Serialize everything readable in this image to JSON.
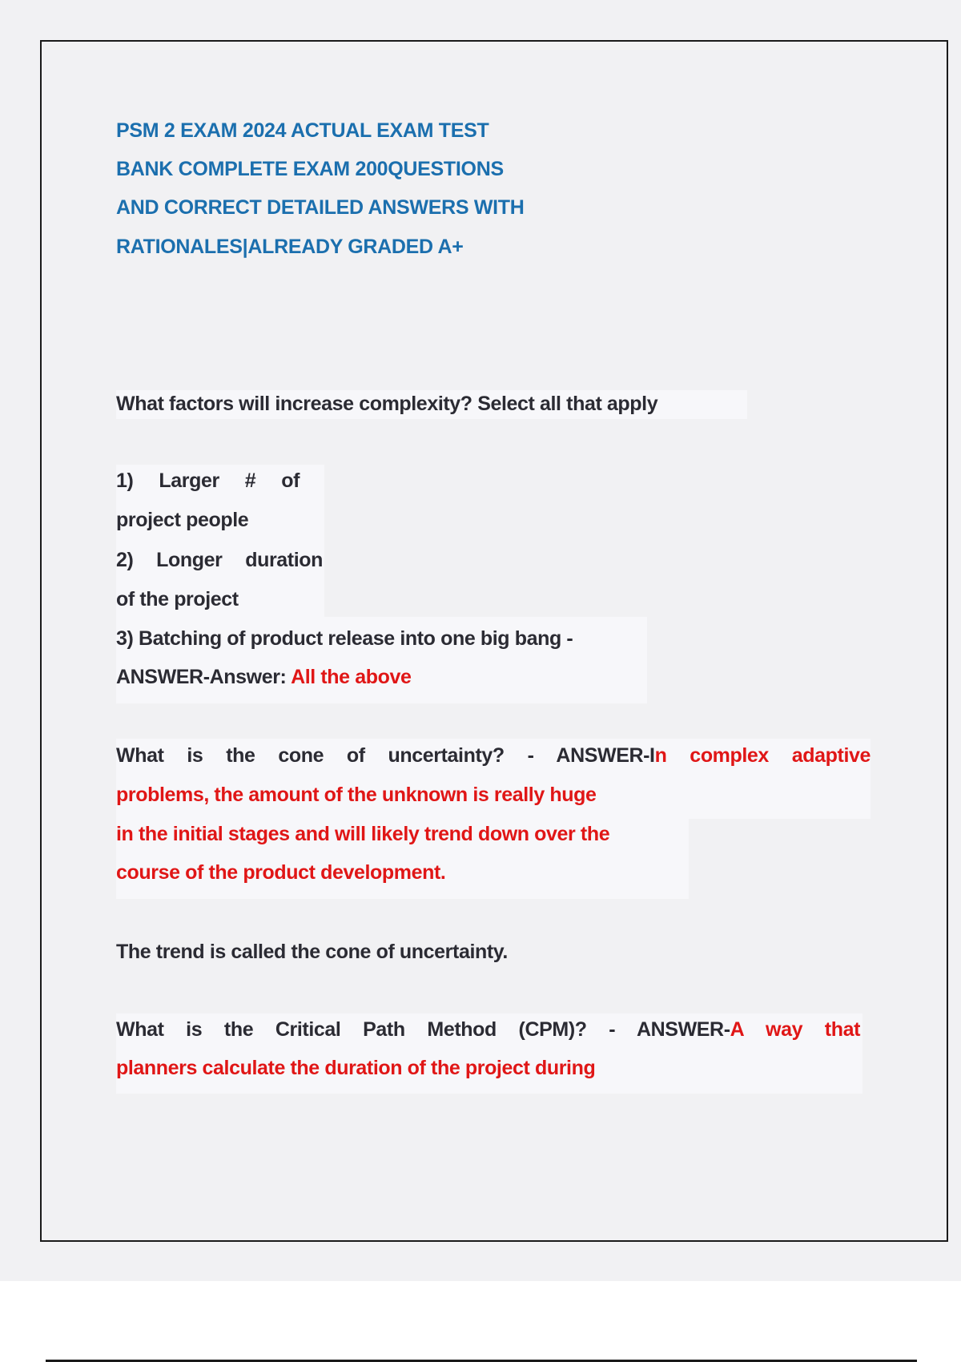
{
  "title_lines": [
    "PSM 2 EXAM 2024 ACTUAL EXAM TEST",
    "BANK COMPLETE EXAM 200QUESTIONS",
    "AND CORRECT DETAILED ANSWERS WITH",
    "RATIONALES|ALREADY GRADED A+"
  ],
  "q1": {
    "question": "What factors will increase complexity? Select all that apply",
    "options": [
      "1) Larger # of",
      "project people",
      "2) Longer duration",
      "of the project",
      "3) Batching of product release into one big bang -"
    ],
    "answer_prefix": "ANSWER-Answer: ",
    "answer": "All the above"
  },
  "q2": {
    "question": "What is the cone of uncertainty? - ANSWER-I",
    "answer_lines": [
      "n complex adaptive",
      "problems, the amount of the unknown is really huge",
      "in the initial stages and will likely trend down over the",
      "course of the product development."
    ],
    "note": "The trend is called the cone of uncertainty."
  },
  "q3": {
    "question": "What is the Critical Path Method (CPM)? - ANSWER-",
    "answer_lines": [
      "A way that",
      "planners calculate the duration of the project during"
    ]
  },
  "colors": {
    "title": "#1b6fae",
    "answer": "#e01616",
    "text": "#2b2b33",
    "page": "#f1f1f3"
  }
}
